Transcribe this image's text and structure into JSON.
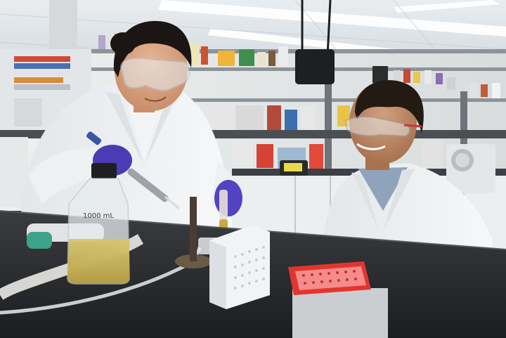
{
  "photo": {
    "bottle_label": "1000 mL"
  }
}
